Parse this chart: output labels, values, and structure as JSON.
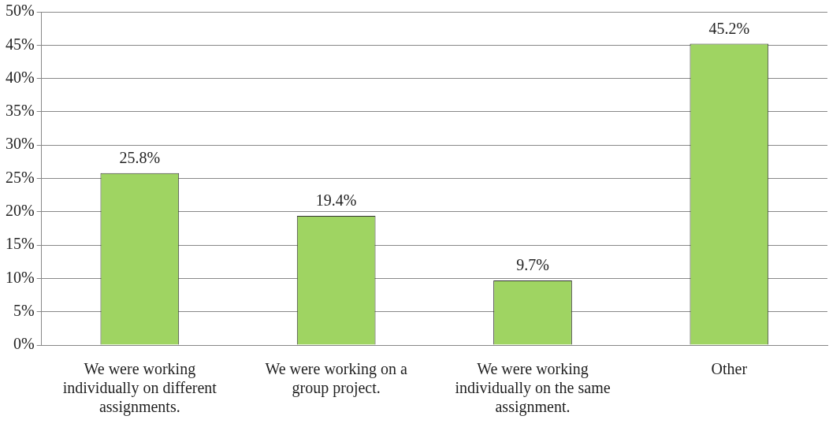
{
  "chart_data": {
    "type": "bar",
    "categories": [
      "We were working individually on different assignments.",
      "We were working on a group project.",
      "We were working individually on the same assignment.",
      "Other"
    ],
    "values": [
      25.8,
      19.4,
      9.7,
      45.2
    ],
    "value_labels": [
      "25.8%",
      "19.4%",
      "9.7%",
      "45.2%"
    ],
    "color": "#9fd462",
    "ylim": [
      0,
      50
    ],
    "yticks": [
      {
        "value": 0,
        "label": "0%"
      },
      {
        "value": 5,
        "label": "5%"
      },
      {
        "value": 10,
        "label": "10%"
      },
      {
        "value": 15,
        "label": "15%"
      },
      {
        "value": 20,
        "label": "20%"
      },
      {
        "value": 25,
        "label": "25%"
      },
      {
        "value": 30,
        "label": "30%"
      },
      {
        "value": 35,
        "label": "35%"
      },
      {
        "value": 40,
        "label": "40%"
      },
      {
        "value": 45,
        "label": "45%"
      },
      {
        "value": 50,
        "label": "50%"
      }
    ],
    "grid": "y",
    "legend": false
  }
}
